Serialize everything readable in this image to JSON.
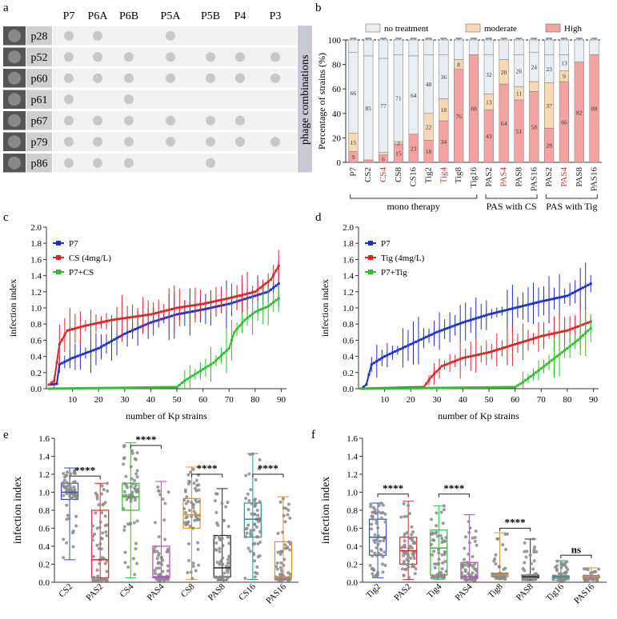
{
  "panel_a": {
    "letter": "a",
    "columns": [
      "P7",
      "P6A",
      "P6B",
      "P5A",
      "P5B",
      "P4",
      "P3"
    ],
    "rows": [
      {
        "label": "p28",
        "dots": [
          1,
          1,
          0,
          1,
          0,
          0,
          0
        ]
      },
      {
        "label": "p52",
        "dots": [
          1,
          1,
          1,
          1,
          1,
          1,
          1
        ]
      },
      {
        "label": "p60",
        "dots": [
          1,
          1,
          1,
          1,
          1,
          1,
          1
        ]
      },
      {
        "label": "p61",
        "dots": [
          1,
          0,
          1,
          0,
          0,
          0,
          0
        ]
      },
      {
        "label": "p67",
        "dots": [
          1,
          1,
          1,
          1,
          1,
          1,
          0
        ]
      },
      {
        "label": "p79",
        "dots": [
          1,
          1,
          1,
          1,
          1,
          1,
          1
        ]
      },
      {
        "label": "p86",
        "dots": [
          1,
          1,
          1,
          0,
          1,
          0,
          0
        ]
      }
    ],
    "side_label": "phage combinations",
    "colors": {
      "dot": "#c8c8c8",
      "row_bg": "#f2f2f2",
      "side_bg": "#c9c9d6"
    }
  },
  "chart_data": [
    {
      "id": "b",
      "type": "bar",
      "stacked": true,
      "title": "b",
      "ylabel": "Percentage of strains (%)",
      "ylim": [
        0,
        100
      ],
      "yticks": [
        0,
        20,
        40,
        60,
        80,
        100
      ],
      "legend": [
        "no treatment",
        "moderate",
        "High"
      ],
      "colors": {
        "no treatment": "#e9eef2",
        "moderate": "#f7d9b5",
        "High": "#f4a3a3"
      },
      "categories": [
        "P7",
        "CS2",
        "CS4",
        "CS8",
        "CS16",
        "Tig2",
        "Tig4",
        "Tig8",
        "Tig16",
        "PAS2",
        "PAS4",
        "PAS8",
        "PAS16",
        "PAS2",
        "PAS4",
        "PAS8",
        "PAS16"
      ],
      "highlight_categories": [
        2,
        6,
        10,
        14
      ],
      "highlight_color": "#c0392b",
      "series": [
        {
          "name": "High",
          "values": [
            9,
            2,
            6,
            15,
            23,
            18,
            34,
            76,
            88,
            43,
            64,
            51,
            58,
            28,
            66,
            82,
            88
          ],
          "labels": [
            "9",
            "",
            "6",
            "15",
            "23",
            "18",
            "34",
            "76",
            "88",
            "43",
            "64",
            "51",
            "58",
            "28",
            "66",
            "82",
            "88"
          ]
        },
        {
          "name": "moderate",
          "values": [
            15,
            0,
            2,
            2,
            0,
            22,
            18,
            8,
            0,
            13,
            20,
            11,
            8,
            37,
            9,
            0,
            0
          ],
          "labels": [
            "15",
            "",
            "",
            "2",
            "",
            "22",
            "18",
            "8",
            "",
            "13",
            "20",
            "11",
            "",
            "37",
            "9",
            "",
            ""
          ]
        },
        {
          "name": "no treatment",
          "values": [
            66,
            85,
            77,
            71,
            64,
            48,
            36,
            0,
            0,
            32,
            0,
            26,
            24,
            23,
            13,
            0,
            0
          ],
          "labels": [
            "66",
            "85",
            "77",
            "71",
            "64",
            "48",
            "36",
            "",
            "",
            "32",
            "",
            "26",
            "24",
            "23",
            "13",
            "",
            ""
          ]
        }
      ],
      "groups": [
        {
          "label": "mono therapy",
          "from": 0,
          "to": 8
        },
        {
          "label": "PAS with CS",
          "from": 9,
          "to": 12
        },
        {
          "label": "PAS with Tig",
          "from": 13,
          "to": 16
        }
      ]
    },
    {
      "id": "c",
      "type": "line",
      "title": "c",
      "xlabel": "number of Kp strains",
      "ylabel": "infection index",
      "xlim": [
        0,
        92
      ],
      "ylim": [
        0,
        2.0
      ],
      "xticks": [
        10,
        20,
        30,
        40,
        50,
        60,
        70,
        80,
        90
      ],
      "yticks": [
        0.0,
        0.2,
        0.4,
        0.6,
        0.8,
        1.0,
        1.2,
        1.4,
        1.6,
        1.8,
        2.0
      ],
      "series": [
        {
          "name": "P7",
          "color": "#1f2fc8",
          "knots": [
            [
              1,
              0.05
            ],
            [
              4,
              0.06
            ],
            [
              5,
              0.3
            ],
            [
              10,
              0.38
            ],
            [
              20,
              0.5
            ],
            [
              30,
              0.68
            ],
            [
              40,
              0.82
            ],
            [
              50,
              0.92
            ],
            [
              60,
              0.98
            ],
            [
              70,
              1.05
            ],
            [
              80,
              1.15
            ],
            [
              85,
              1.2
            ],
            [
              89,
              1.3
            ]
          ]
        },
        {
          "name": "CS (4mg/L)",
          "color": "#d8282a",
          "knots": [
            [
              1,
              0.05
            ],
            [
              3,
              0.1
            ],
            [
              5,
              0.55
            ],
            [
              8,
              0.72
            ],
            [
              15,
              0.78
            ],
            [
              25,
              0.85
            ],
            [
              40,
              0.92
            ],
            [
              50,
              1.0
            ],
            [
              60,
              1.05
            ],
            [
              70,
              1.12
            ],
            [
              80,
              1.2
            ],
            [
              86,
              1.35
            ],
            [
              89,
              1.52
            ]
          ]
        },
        {
          "name": "P7+CS",
          "color": "#2fbf2f",
          "knots": [
            [
              1,
              0.0
            ],
            [
              50,
              0.02
            ],
            [
              53,
              0.1
            ],
            [
              58,
              0.2
            ],
            [
              64,
              0.32
            ],
            [
              70,
              0.5
            ],
            [
              72,
              0.7
            ],
            [
              76,
              0.85
            ],
            [
              80,
              0.95
            ],
            [
              85,
              1.02
            ],
            [
              89,
              1.12
            ]
          ]
        }
      ]
    },
    {
      "id": "d",
      "type": "line",
      "title": "d",
      "xlabel": "number of Kp strains",
      "ylabel": "infection index",
      "xlim": [
        0,
        92
      ],
      "ylim": [
        0,
        2.0
      ],
      "xticks": [
        10,
        20,
        30,
        40,
        50,
        60,
        70,
        80,
        90
      ],
      "yticks": [
        0.0,
        0.2,
        0.4,
        0.6,
        0.8,
        1.0,
        1.2,
        1.4,
        1.6,
        1.8,
        2.0
      ],
      "series": [
        {
          "name": "P7",
          "color": "#1f2fc8",
          "knots": [
            [
              1,
              0.0
            ],
            [
              3,
              0.05
            ],
            [
              5,
              0.3
            ],
            [
              10,
              0.4
            ],
            [
              20,
              0.55
            ],
            [
              30,
              0.7
            ],
            [
              40,
              0.82
            ],
            [
              50,
              0.92
            ],
            [
              60,
              1.0
            ],
            [
              70,
              1.08
            ],
            [
              80,
              1.15
            ],
            [
              89,
              1.3
            ]
          ]
        },
        {
          "name": "Tig (4mg/L)",
          "color": "#d8282a",
          "knots": [
            [
              1,
              0.0
            ],
            [
              25,
              0.02
            ],
            [
              28,
              0.15
            ],
            [
              32,
              0.28
            ],
            [
              40,
              0.38
            ],
            [
              50,
              0.45
            ],
            [
              60,
              0.55
            ],
            [
              70,
              0.65
            ],
            [
              80,
              0.72
            ],
            [
              89,
              0.83
            ]
          ]
        },
        {
          "name": "P7+Tig",
          "color": "#2fbf2f",
          "knots": [
            [
              1,
              0.0
            ],
            [
              60,
              0.02
            ],
            [
              63,
              0.08
            ],
            [
              68,
              0.2
            ],
            [
              72,
              0.3
            ],
            [
              78,
              0.45
            ],
            [
              84,
              0.6
            ],
            [
              89,
              0.75
            ]
          ]
        }
      ]
    },
    {
      "id": "e",
      "type": "box",
      "title": "e",
      "ylabel": "infection index",
      "ylim": [
        0,
        1.6
      ],
      "yticks": [
        0.0,
        0.2,
        0.4,
        0.6,
        0.8,
        1.0,
        1.2,
        1.4,
        1.6
      ],
      "categories": [
        "CS2",
        "PAS2",
        "CS4",
        "PAS4",
        "CS8",
        "PAS8",
        "CS16",
        "PAS16"
      ],
      "colors": [
        "#2f4ec8",
        "#d8282a",
        "#2fbf2f",
        "#c43cc4",
        "#e0922a",
        "#222222",
        "#1a9a8a",
        "#e0922a"
      ],
      "boxes": [
        {
          "min": 0.25,
          "q1": 0.92,
          "median": 1.0,
          "q3": 1.1,
          "max": 1.27
        },
        {
          "min": 0.02,
          "q1": 0.05,
          "median": 0.25,
          "q3": 0.8,
          "max": 1.1
        },
        {
          "min": 0.05,
          "q1": 0.8,
          "median": 0.95,
          "q3": 1.1,
          "max": 1.55
        },
        {
          "min": 0.02,
          "q1": 0.05,
          "median": 0.06,
          "q3": 0.4,
          "max": 1.12
        },
        {
          "min": 0.03,
          "q1": 0.6,
          "median": 0.75,
          "q3": 0.93,
          "max": 1.28
        },
        {
          "min": 0.02,
          "q1": 0.06,
          "median": 0.16,
          "q3": 0.52,
          "max": 1.04
        },
        {
          "min": 0.03,
          "q1": 0.5,
          "median": 0.7,
          "q3": 0.88,
          "max": 1.43
        },
        {
          "min": 0.02,
          "q1": 0.05,
          "median": 0.06,
          "q3": 0.45,
          "max": 0.95
        }
      ],
      "comparisons": [
        {
          "a": 0,
          "b": 1,
          "label": "****",
          "level": 1.18
        },
        {
          "a": 2,
          "b": 3,
          "label": "****",
          "level": 1.52
        },
        {
          "a": 4,
          "b": 5,
          "label": "****",
          "level": 1.2
        },
        {
          "a": 6,
          "b": 7,
          "label": "****",
          "level": 1.2
        }
      ]
    },
    {
      "id": "f",
      "type": "box",
      "title": "f",
      "ylabel": "infection index",
      "ylim": [
        0,
        1.6
      ],
      "yticks": [
        0.0,
        0.2,
        0.4,
        0.6,
        0.8,
        1.0,
        1.2,
        1.4,
        1.6
      ],
      "categories": [
        "Tig2",
        "PAS2",
        "Tig4",
        "PAS4",
        "Tig8",
        "PAS8",
        "Tig16",
        "PAS16"
      ],
      "colors": [
        "#2f4ec8",
        "#d8282a",
        "#2fbf2f",
        "#c43cc4",
        "#e0922a",
        "#222222",
        "#1a9a8a",
        "#e0922a"
      ],
      "boxes": [
        {
          "min": 0.05,
          "q1": 0.3,
          "median": 0.5,
          "q3": 0.7,
          "max": 0.88
        },
        {
          "min": 0.03,
          "q1": 0.2,
          "median": 0.35,
          "q3": 0.5,
          "max": 0.9
        },
        {
          "min": 0.03,
          "q1": 0.08,
          "median": 0.38,
          "q3": 0.58,
          "max": 0.85
        },
        {
          "min": 0.02,
          "q1": 0.04,
          "median": 0.06,
          "q3": 0.22,
          "max": 0.75
        },
        {
          "min": 0.03,
          "q1": 0.06,
          "median": 0.08,
          "q3": 0.1,
          "max": 0.55
        },
        {
          "min": 0.02,
          "q1": 0.05,
          "median": 0.06,
          "q3": 0.08,
          "max": 0.48
        },
        {
          "min": 0.02,
          "q1": 0.05,
          "median": 0.06,
          "q3": 0.07,
          "max": 0.24
        },
        {
          "min": 0.02,
          "q1": 0.05,
          "median": 0.06,
          "q3": 0.07,
          "max": 0.16
        }
      ],
      "comparisons": [
        {
          "a": 0,
          "b": 1,
          "label": "****",
          "level": 0.98
        },
        {
          "a": 2,
          "b": 3,
          "label": "****",
          "level": 0.98
        },
        {
          "a": 4,
          "b": 5,
          "label": "****",
          "level": 0.6
        },
        {
          "a": 6,
          "b": 7,
          "label": "ns",
          "level": 0.3
        }
      ]
    }
  ]
}
